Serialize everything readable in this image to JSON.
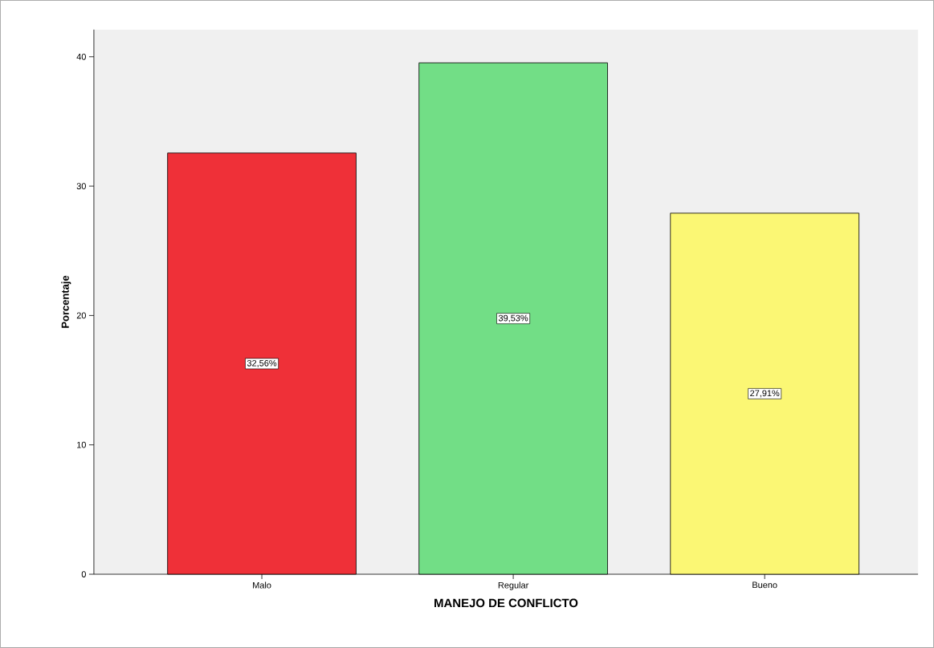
{
  "chart_data": {
    "type": "bar",
    "xlabel": "MANEJO DE CONFLICTO",
    "ylabel": "Porcentaje",
    "categories": [
      "Malo",
      "Regular",
      "Bueno"
    ],
    "values": [
      32.56,
      39.53,
      27.91
    ],
    "colors": [
      "#ef3038",
      "#72de86",
      "#fbf774"
    ],
    "value_labels": [
      "32,56%",
      "39,53%",
      "27,91%"
    ],
    "ylim": [
      0,
      42.1
    ],
    "yticks": [
      0,
      10,
      20,
      30,
      40
    ]
  }
}
